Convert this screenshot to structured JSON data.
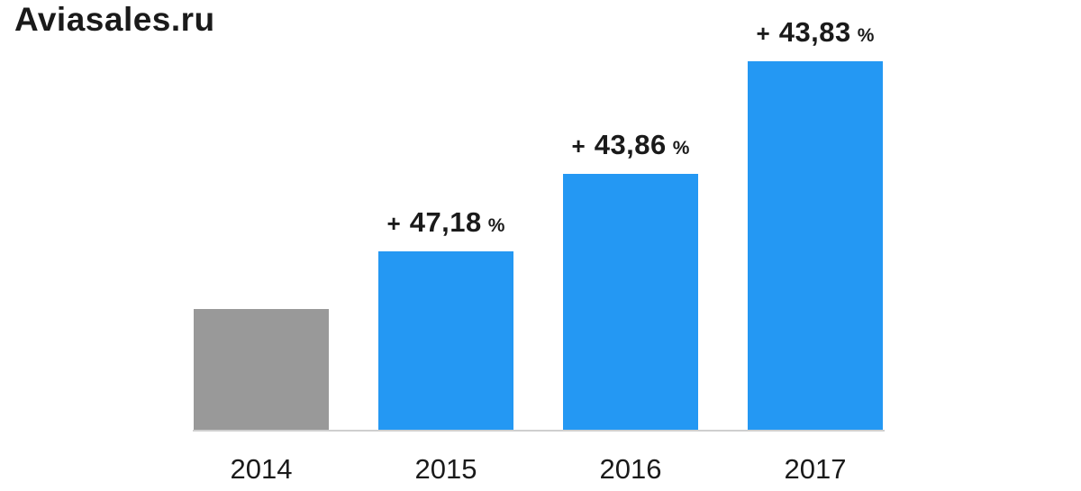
{
  "title": "Aviasales.ru",
  "colors": {
    "bar_blue": "#2498F3",
    "bar_gray": "#999999",
    "axis_line": "#CFCFCF",
    "text": "#1A1A1A"
  },
  "chart_data": {
    "type": "bar",
    "title": "Aviasales.ru",
    "categories": [
      "2014",
      "2015",
      "2016",
      "2017"
    ],
    "values": [
      100,
      147.18,
      211.73,
      304.54
    ],
    "values_note": "Indexed level, 2014 = 100; derived from the year-over-year growth labels shown on the chart",
    "bar_colors": [
      "#999999",
      "#2498F3",
      "#2498F3",
      "#2498F3"
    ],
    "growth_labels": [
      null,
      {
        "plus": "+",
        "value": "47,18",
        "unit": "%"
      },
      {
        "plus": "+",
        "value": "43,86",
        "unit": "%"
      },
      {
        "plus": "+",
        "value": "43,83",
        "unit": "%"
      }
    ],
    "xlabel": "",
    "ylabel": "",
    "legend": false,
    "grid": false,
    "ylim": [
      0,
      320
    ]
  }
}
